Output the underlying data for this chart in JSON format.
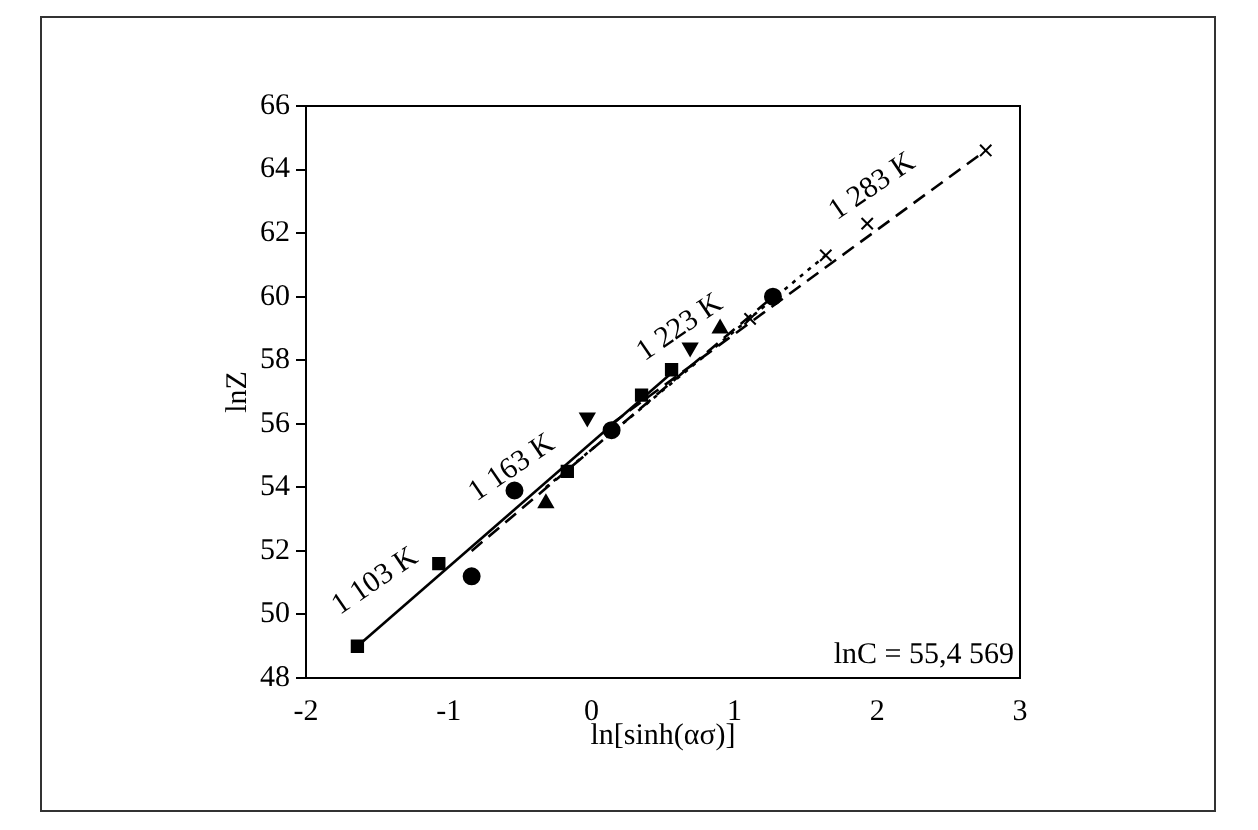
{
  "chart_data": {
    "type": "scatter",
    "xlabel": "ln[sinh(ασ)]",
    "ylabel": "lnZ",
    "xlim": [
      -2,
      3
    ],
    "xticks": [
      -2,
      -1,
      0,
      1,
      2,
      3
    ],
    "ylim": [
      48,
      66
    ],
    "yticks": [
      48,
      50,
      52,
      54,
      56,
      58,
      60,
      62,
      64,
      66
    ],
    "grid": false,
    "legend": false,
    "series": [
      {
        "color": "#000000",
        "marker": "square",
        "x": [
          -1.64,
          -1.07,
          -0.17,
          0.35,
          0.56
        ],
        "values": [
          49.0,
          51.6,
          54.5,
          56.9,
          57.7
        ]
      },
      {
        "color": "#000000",
        "marker": "circle",
        "x": [
          -0.84,
          -0.54,
          0.14,
          1.27
        ],
        "values": [
          51.2,
          53.9,
          55.8,
          60.0
        ]
      },
      {
        "color": "#000000",
        "marker": "triangle",
        "x": [
          -0.32,
          0.36,
          0.9
        ],
        "values": [
          53.5,
          null,
          59.0
        ]
      },
      {
        "color": "#000000",
        "marker": "triangle",
        "x": [
          -0.03,
          0.69
        ],
        "values": [
          56.2,
          58.4
        ]
      },
      {
        "color": "#000000",
        "marker": "cross",
        "x": [
          1.11,
          1.64,
          1.93,
          2.76
        ],
        "values": [
          59.3,
          61.3,
          62.3,
          64.6
        ]
      },
      {
        "type": "line",
        "color": "#000000",
        "line_style": "solid",
        "marker": "none",
        "x": [
          -1.64,
          0.56
        ],
        "values": [
          49.0,
          57.6
        ]
      },
      {
        "type": "line",
        "color": "#000000",
        "line_style": "dashed",
        "marker": "none",
        "x": [
          -0.84,
          1.27
        ],
        "values": [
          52.0,
          60.0
        ]
      },
      {
        "type": "line",
        "color": "#000000",
        "line_style": "dotted",
        "marker": "none",
        "x": [
          -0.32,
          1.64
        ],
        "values": [
          54.0,
          61.3
        ]
      },
      {
        "type": "line",
        "color": "#000000",
        "line_style": "dashed",
        "marker": "none",
        "x": [
          0.14,
          2.76
        ],
        "values": [
          56.0,
          64.6
        ]
      }
    ],
    "annotations": [
      "1 103 K",
      "1 163 K",
      "1 223 K",
      "1 283 K",
      "lnC = 55,4 569"
    ]
  }
}
